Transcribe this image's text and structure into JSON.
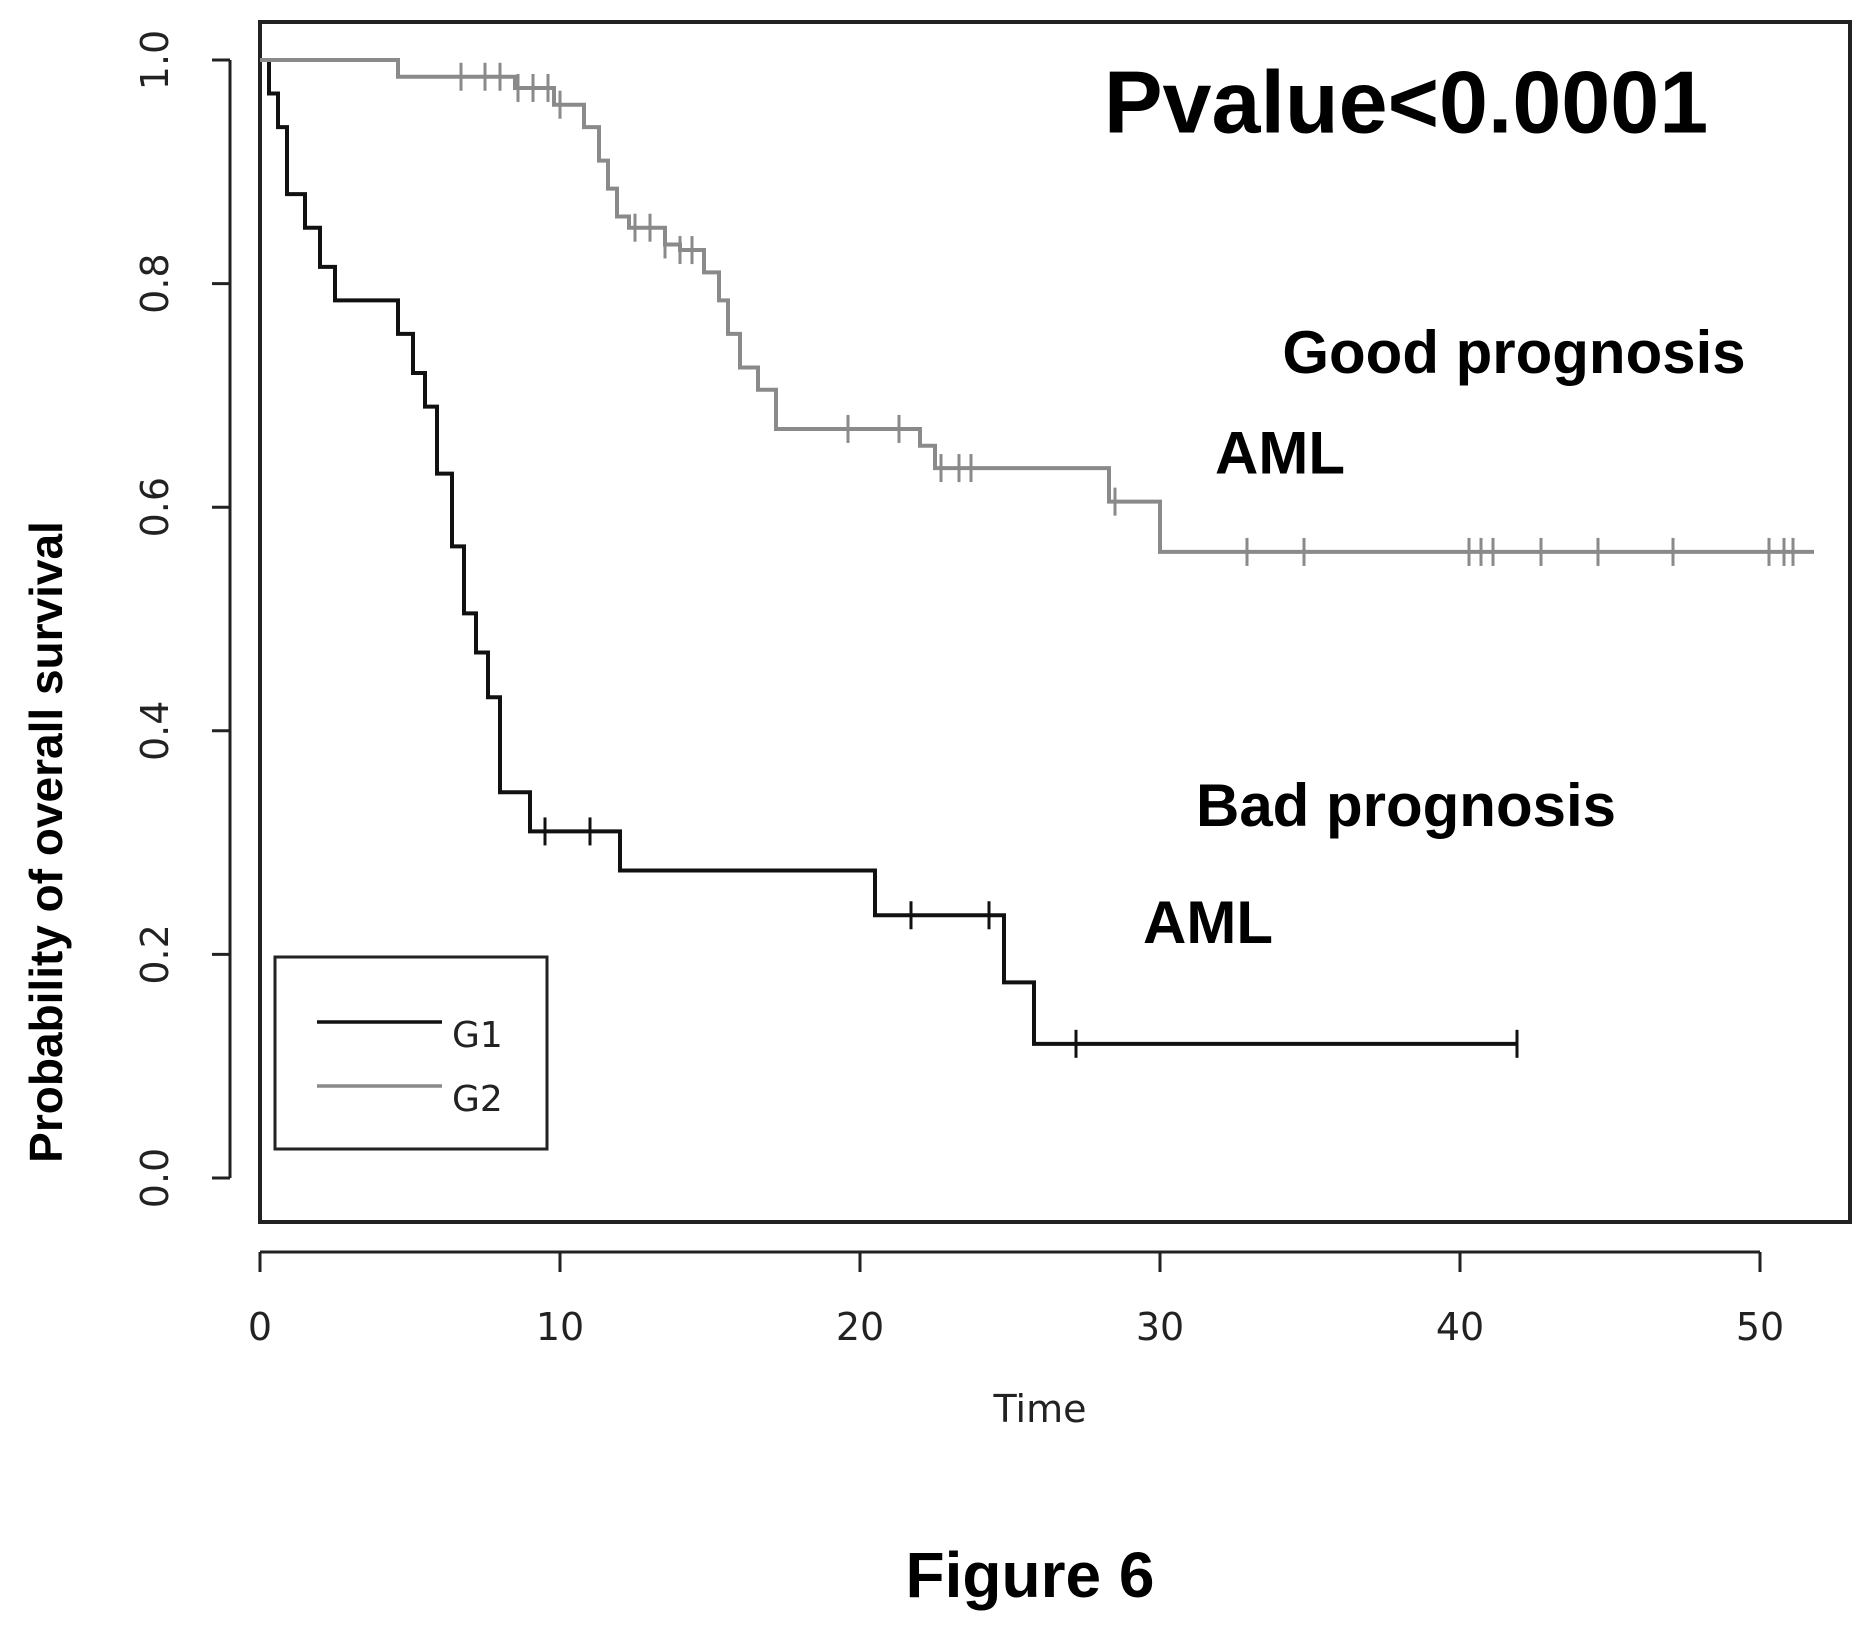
{
  "chart_data": {
    "type": "line",
    "subtype": "kaplan-meier",
    "title": "",
    "xlabel": "Time",
    "ylabel": "Probability of overall survival",
    "xlim": [
      0,
      52
    ],
    "ylim": [
      0,
      1
    ],
    "xticks": [
      0,
      10,
      20,
      30,
      40,
      50
    ],
    "yticks": [
      0.0,
      0.2,
      0.4,
      0.6,
      0.8,
      1.0
    ],
    "ytick_labels": [
      "0.0",
      "0.2",
      "0.4",
      "0.6",
      "0.8",
      "1.0"
    ],
    "grid": false,
    "legend_position": "bottom-left",
    "series": [
      {
        "name": "G1",
        "color": "#111111",
        "steps": [
          [
            0,
            1.0
          ],
          [
            0.3,
            0.97
          ],
          [
            0.6,
            0.94
          ],
          [
            0.9,
            0.88
          ],
          [
            1.5,
            0.85
          ],
          [
            2.0,
            0.815
          ],
          [
            2.5,
            0.785
          ],
          [
            4.6,
            0.755
          ],
          [
            5.1,
            0.72
          ],
          [
            5.5,
            0.69
          ],
          [
            5.9,
            0.63
          ],
          [
            6.4,
            0.565
          ],
          [
            6.8,
            0.505
          ],
          [
            7.2,
            0.47
          ],
          [
            7.6,
            0.43
          ],
          [
            8.0,
            0.345
          ],
          [
            9.0,
            0.31
          ],
          [
            12.0,
            0.275
          ],
          [
            20.5,
            0.235
          ],
          [
            24.8,
            0.175
          ],
          [
            25.8,
            0.12
          ],
          [
            41.9,
            0.12
          ]
        ],
        "censor_times": [
          9.5,
          11.0,
          21.7,
          24.3,
          27.2,
          41.9
        ]
      },
      {
        "name": "G2",
        "color": "#8a8a8a",
        "steps": [
          [
            0,
            1.0
          ],
          [
            4.6,
            0.985
          ],
          [
            8.5,
            0.975
          ],
          [
            9.8,
            0.96
          ],
          [
            10.8,
            0.94
          ],
          [
            11.3,
            0.91
          ],
          [
            11.6,
            0.885
          ],
          [
            11.9,
            0.86
          ],
          [
            12.3,
            0.85
          ],
          [
            13.5,
            0.835
          ],
          [
            14.0,
            0.83
          ],
          [
            14.8,
            0.81
          ],
          [
            15.3,
            0.785
          ],
          [
            15.6,
            0.755
          ],
          [
            16.0,
            0.725
          ],
          [
            16.6,
            0.705
          ],
          [
            17.2,
            0.67
          ],
          [
            22.0,
            0.655
          ],
          [
            22.5,
            0.635
          ],
          [
            28.3,
            0.605
          ],
          [
            30.0,
            0.56
          ],
          [
            51.8,
            0.56
          ]
        ],
        "censor_times": [
          6.7,
          7.5,
          8.0,
          8.6,
          9.1,
          9.6,
          10.0,
          12.5,
          13.0,
          13.5,
          14.0,
          14.4,
          19.6,
          21.3,
          22.7,
          23.3,
          23.7,
          28.5,
          32.9,
          34.8,
          40.3,
          40.7,
          41.1,
          42.7,
          44.6,
          47.1,
          50.3,
          50.8,
          51.1
        ]
      }
    ],
    "annotations": [
      {
        "text": "Pvalue<0.0001",
        "x": 38.2,
        "y": 0.935
      },
      {
        "text": "Good prognosis",
        "x": 41.8,
        "y": 0.72
      },
      {
        "text": "AML",
        "x": 34.0,
        "y": 0.63
      },
      {
        "text": "Bad prognosis",
        "x": 38.2,
        "y": 0.315
      },
      {
        "text": "AML",
        "x": 31.6,
        "y": 0.21
      }
    ]
  },
  "figure_caption": "Figure 6"
}
